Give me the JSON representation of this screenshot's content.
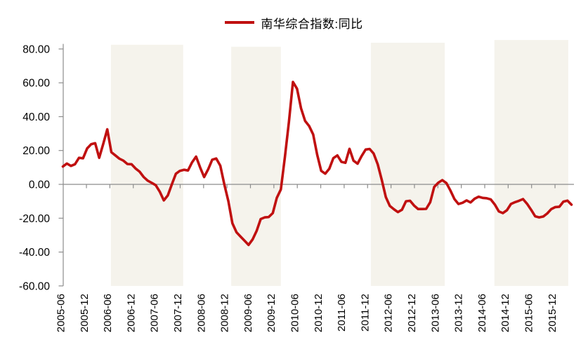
{
  "page": {
    "background": "#FFFFFF"
  },
  "legend": {
    "items": [
      {
        "label": "南华综合指数:同比",
        "marker": "line",
        "color": "#C01010"
      }
    ]
  },
  "chart_data": {
    "type": "line",
    "title": "",
    "xlabel": "",
    "ylabel": "",
    "grid": "zero-line-only",
    "axis_color": "#8C8C8C",
    "text_color": "#000000",
    "band_color": "#F5F3EC",
    "legend_position": "top-center",
    "y_axis": {
      "tick_values": [
        80,
        60,
        40,
        20,
        0,
        -20,
        -40,
        -60
      ],
      "tick_labels": [
        "80.00",
        "60.00",
        "40.00",
        "20.00",
        "0.00",
        "-20.00",
        "-40.00",
        "-60.00"
      ],
      "range": [
        -60,
        83
      ]
    },
    "x_axis": {
      "tick_labels": [
        "2005-06",
        "2005-12",
        "2006-06",
        "2006-12",
        "2007-06",
        "2007-12",
        "2008-06",
        "2008-12",
        "2009-06",
        "2009-12",
        "2010-06",
        "2010-12",
        "2011-06",
        "2011-12",
        "2012-06",
        "2012-12",
        "2013-06",
        "2013-12",
        "2014-06",
        "2014-12",
        "2015-06",
        "2015-12"
      ],
      "label_rotation_deg": 90,
      "frequency_of_labels": "every 6 months"
    },
    "series": [
      {
        "name": "南华综合指数:同比",
        "color": "#C01010",
        "line_width": 3.6,
        "frequency": "monthly",
        "start_month": "2005-06",
        "end_month": "2015-12",
        "values": [
          10.5,
          12.3,
          10.9,
          11.9,
          15.7,
          15.4,
          21.2,
          23.7,
          24.3,
          15.7,
          24.0,
          32.5,
          19.0,
          17.1,
          15.2,
          14.0,
          12.0,
          11.9,
          9.4,
          7.5,
          4.4,
          2.2,
          0.9,
          -0.5,
          -4.3,
          -9.5,
          -6.5,
          0.0,
          6.3,
          8.0,
          8.6,
          8.2,
          13.0,
          16.4,
          10.0,
          4.3,
          9.0,
          14.6,
          15.3,
          11.0,
          0.0,
          -10.0,
          -23.0,
          -28.3,
          -30.8,
          -33.3,
          -35.8,
          -32.5,
          -27.5,
          -20.5,
          -19.5,
          -19.3,
          -17.0,
          -8.0,
          -3.0,
          16.0,
          37.0,
          60.5,
          56.5,
          45.0,
          37.5,
          34.5,
          29.5,
          17.5,
          8.0,
          6.3,
          9.2,
          15.5,
          17.1,
          13.3,
          12.7,
          21.0,
          14.0,
          12.2,
          16.7,
          20.6,
          20.9,
          18.2,
          11.8,
          2.7,
          -7.5,
          -12.7,
          -14.7,
          -16.4,
          -15.0,
          -10.0,
          -9.7,
          -12.5,
          -14.6,
          -14.6,
          -14.5,
          -10.5,
          -1.5,
          1.0,
          2.5,
          0.8,
          -3.6,
          -8.7,
          -11.6,
          -10.9,
          -9.5,
          -10.7,
          -8.5,
          -7.3,
          -8.0,
          -8.2,
          -8.9,
          -11.9,
          -16.0,
          -17.0,
          -15.3,
          -11.6,
          -10.5,
          -9.7,
          -8.7,
          -11.5,
          -15.0,
          -18.9,
          -19.5,
          -19.0,
          -17.2,
          -14.6,
          -13.4,
          -13.2,
          -10.2,
          -9.6,
          -12.0
        ]
      }
    ],
    "shaded_bands": [
      {
        "start": "2006-06",
        "end": "2007-12",
        "start_index": 11.9,
        "end_index": 29.8,
        "top_value": 82.5
      },
      {
        "start": "2008-12",
        "end": "2009-12",
        "start_index": 41.7,
        "end_index": 54.0,
        "top_value": 81.3
      },
      {
        "start": "2011-10",
        "end": "2013-04",
        "start_index": 76.3,
        "end_index": 94.6,
        "top_value": 83.7
      },
      {
        "start": "2014-05",
        "end": "2015-11",
        "start_index": 106.9,
        "end_index": 125.2,
        "top_value": 85.3
      }
    ]
  }
}
